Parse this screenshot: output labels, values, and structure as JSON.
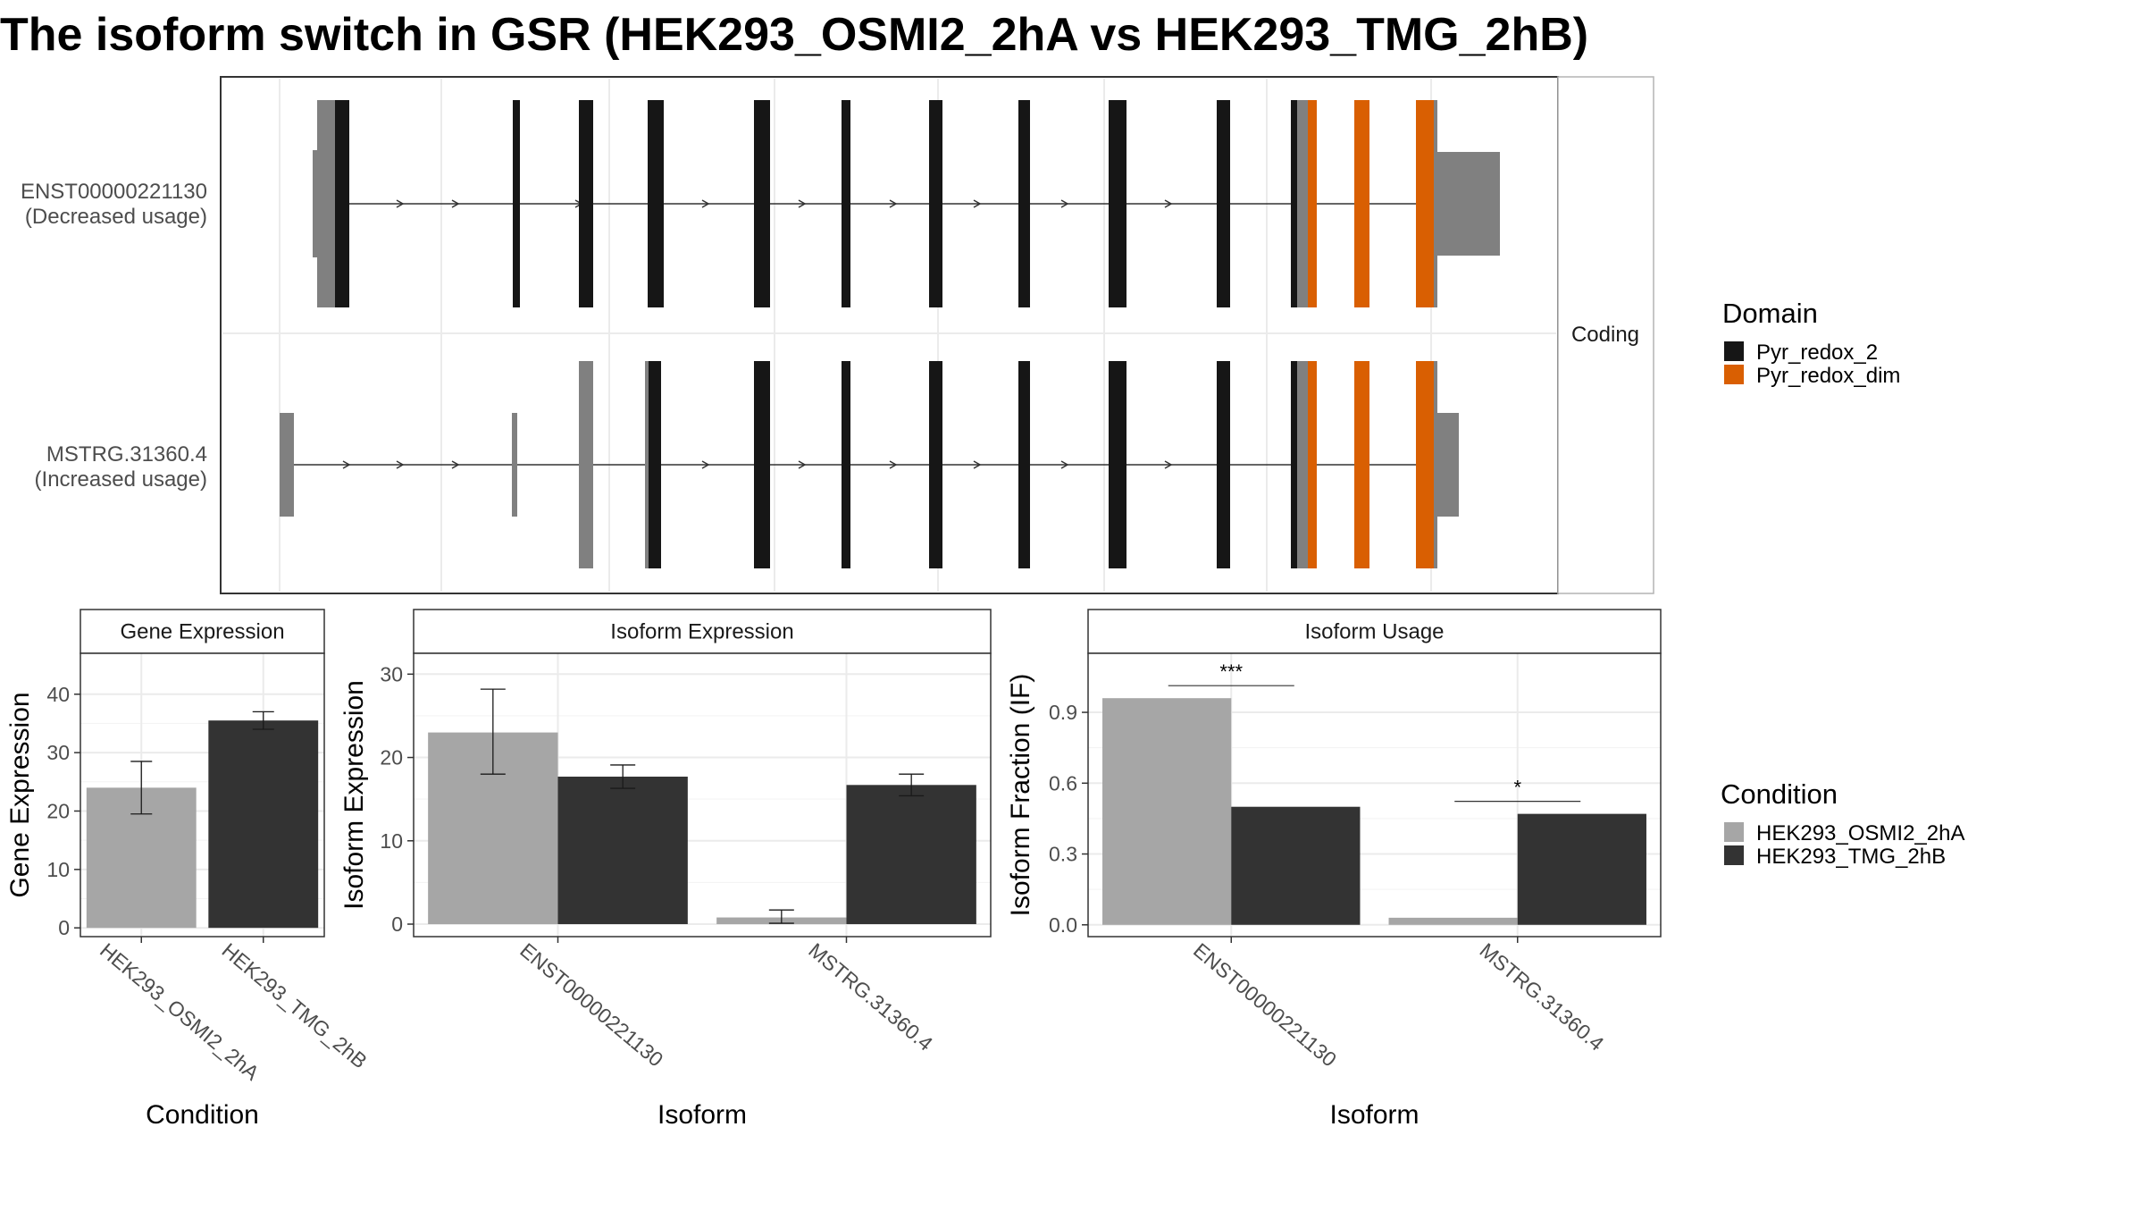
{
  "title": "The isoform switch in GSR (HEK293_OSMI2_2hA vs HEK293_TMG_2hB)",
  "colors": {
    "cond_a": "#a6a6a6",
    "cond_b": "#333333",
    "utr": "#808080",
    "pyr_redox_2": "#161616",
    "pyr_redox_dim": "#d95f02",
    "grid": "#ebebeb",
    "panel_border": "#333333",
    "strip_fill": "#ffffff"
  },
  "structure": {
    "strip_label": "Coding",
    "isoforms": [
      {
        "id": "ENST00000221130",
        "usage": "(Decreased usage)"
      },
      {
        "id": "MSTRG.31360.4",
        "usage": "(Increased usage)"
      }
    ]
  },
  "legend_domain": {
    "title": "Domain",
    "items": [
      {
        "label": "Pyr_redox_2",
        "color": "#161616"
      },
      {
        "label": "Pyr_redox_dim",
        "color": "#d95f02"
      }
    ]
  },
  "legend_condition": {
    "title": "Condition",
    "items": [
      {
        "label": "HEK293_OSMI2_2hA",
        "color": "#a6a6a6"
      },
      {
        "label": "HEK293_TMG_2hB",
        "color": "#333333"
      }
    ]
  },
  "chart_data": [
    {
      "type": "gene-structure",
      "strip": "Coding",
      "domains": [
        "Pyr_redox_2",
        "Pyr_redox_dim"
      ],
      "isoforms": [
        "ENST00000221130",
        "MSTRG.31360.4"
      ]
    },
    {
      "type": "bar",
      "strip": "Gene Expression",
      "xlabel": "Condition",
      "ylabel": "Gene Expression",
      "categories": [
        "HEK293_OSMI2_2hA",
        "HEK293_TMG_2hB"
      ],
      "values": [
        24.0,
        35.5
      ],
      "errors": [
        [
          19.5,
          28.5
        ],
        [
          34.0,
          37.0
        ]
      ],
      "ylim": [
        -1.5,
        47
      ],
      "yticks": [
        0,
        10,
        20,
        30,
        40
      ]
    },
    {
      "type": "bar",
      "strip": "Isoform Expression",
      "xlabel": "Isoform",
      "ylabel": "Isoform Expression",
      "categories": [
        "ENST00000221130",
        "MSTRG.31360.4"
      ],
      "series": [
        {
          "name": "HEK293_OSMI2_2hA",
          "values": [
            23.0,
            0.8
          ],
          "errors": [
            [
              18.0,
              28.2
            ],
            [
              0.1,
              1.7
            ]
          ]
        },
        {
          "name": "HEK293_TMG_2hB",
          "values": [
            17.7,
            16.7
          ],
          "errors": [
            [
              16.3,
              19.1
            ],
            [
              15.4,
              18.0
            ]
          ]
        }
      ],
      "ylim": [
        -1.5,
        32.5
      ],
      "yticks": [
        0,
        10,
        20,
        30
      ]
    },
    {
      "type": "bar",
      "strip": "Isoform Usage",
      "xlabel": "Isoform",
      "ylabel": "Isoform Fraction (IF)",
      "categories": [
        "ENST00000221130",
        "MSTRG.31360.4"
      ],
      "series": [
        {
          "name": "HEK293_OSMI2_2hA",
          "values": [
            0.96,
            0.03
          ]
        },
        {
          "name": "HEK293_TMG_2hB",
          "values": [
            0.5,
            0.47
          ]
        }
      ],
      "significance": [
        "***",
        "*"
      ],
      "ylim": [
        -0.05,
        1.15
      ],
      "yticks": [
        0.0,
        0.3,
        0.6,
        0.9
      ],
      "ytick_labels": [
        "0.0",
        "0.3",
        "0.6",
        "0.9"
      ]
    }
  ]
}
